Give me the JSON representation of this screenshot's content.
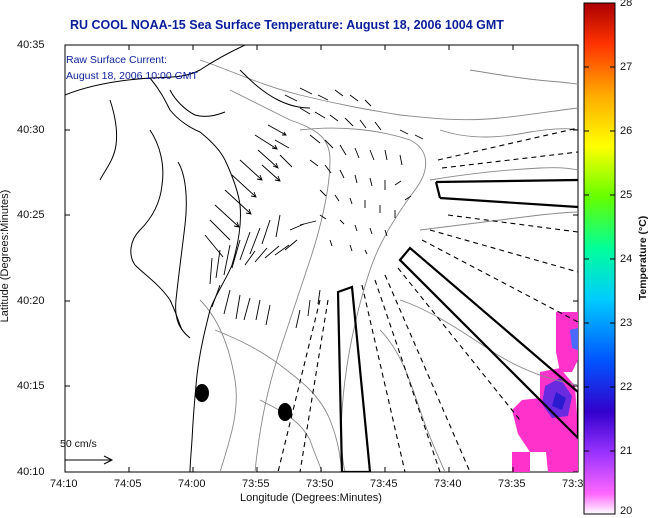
{
  "title": "RU COOL  NOAA-15  Sea Surface Temperature:  August 18, 2006 1004 GMT",
  "annotation": {
    "line1": "Raw Surface Current:",
    "line2": "August 18, 2006 10:00 GMT"
  },
  "scale_label": "50 cm/s",
  "axes": {
    "xlabel": "Longitude (Degrees:Minutes)",
    "ylabel": "Latitude (Degrees:Minutes)",
    "xticks": [
      "74:10",
      "74:05",
      "74:00",
      "73:55",
      "73:50",
      "73:45",
      "73:40",
      "73:35",
      "73:3"
    ],
    "yticks": [
      "40:35",
      "40:30",
      "40:25",
      "40:20",
      "40:15",
      "40:10"
    ]
  },
  "colorbar": {
    "label": "Temperature (°C)",
    "ticks": [
      "28",
      "27",
      "26",
      "25",
      "24",
      "23",
      "22",
      "21",
      "20"
    ],
    "min": 20,
    "max": 28
  },
  "colors": {
    "title": "#0a1e9a",
    "warm_patch": "#ff33cc",
    "cool_patch": "#5a2be0"
  }
}
